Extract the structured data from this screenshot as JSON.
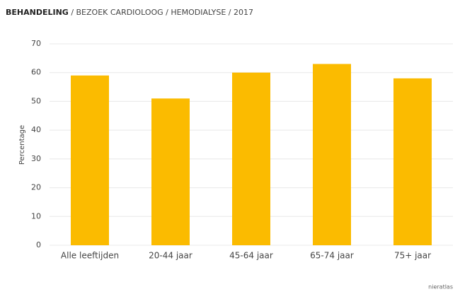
{
  "chart_data": {
    "type": "bar",
    "title": "BEHANDELING",
    "subtitle": "/ BEZOEK CARDIOLOOG / HEMODIALYSE / 2017",
    "ylabel": "Percentage",
    "source": "nieratlas",
    "categories": [
      "Alle leeftijden",
      "20-44 jaar",
      "45-64 jaar",
      "65-74 jaar",
      "75+ jaar"
    ],
    "values": [
      59,
      51,
      60,
      63,
      58
    ],
    "color": "#fbbb00",
    "ylim": [
      0,
      70
    ],
    "yticks": [
      0,
      10,
      20,
      30,
      40,
      50,
      60,
      70
    ],
    "grid": true
  }
}
